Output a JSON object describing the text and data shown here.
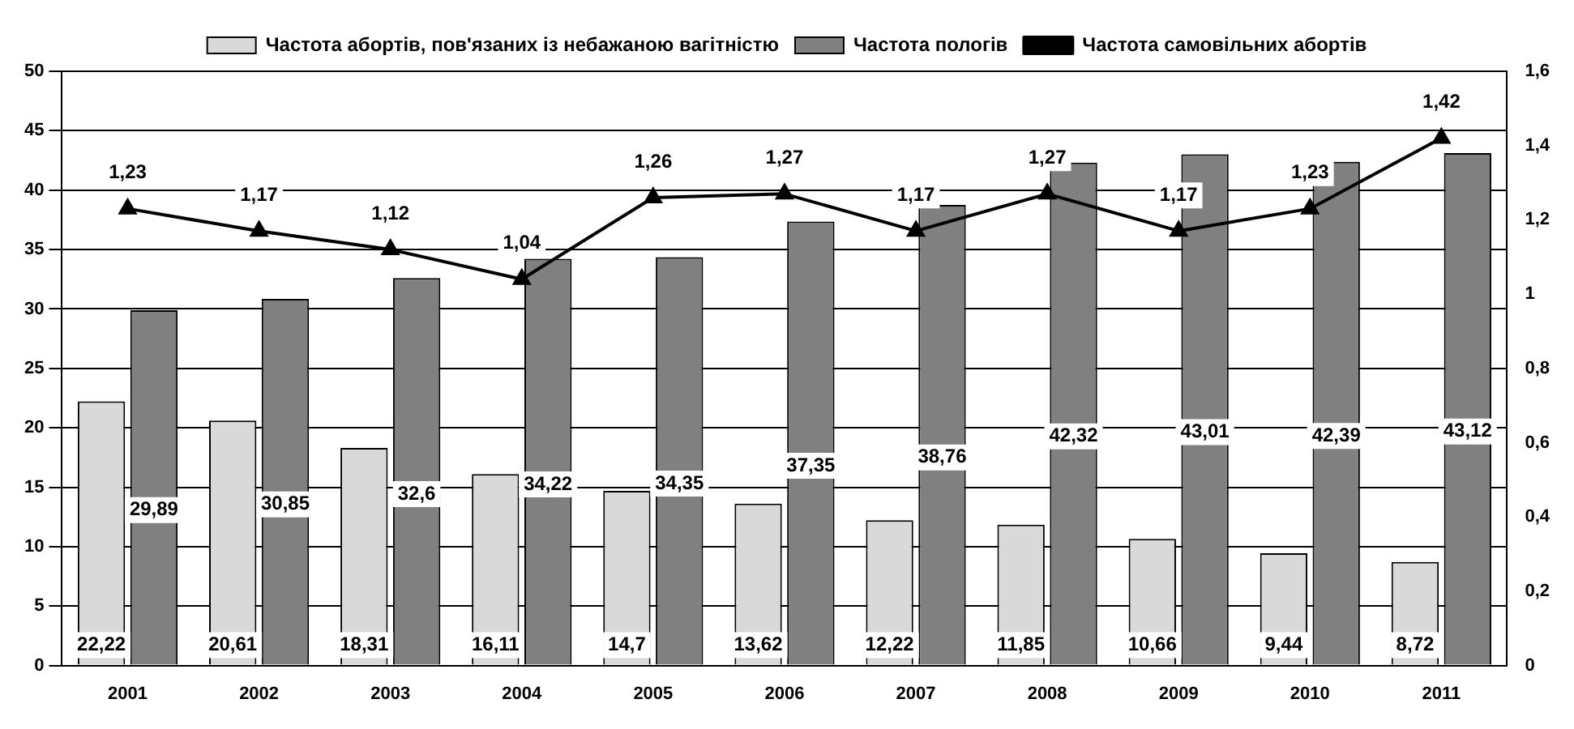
{
  "chart_data": {
    "type": "bar",
    "categories": [
      "2001",
      "2002",
      "2003",
      "2004",
      "2005",
      "2006",
      "2007",
      "2008",
      "2009",
      "2010",
      "2011"
    ],
    "series": [
      {
        "name": "Частота абортів, пов'язаних із небажаною вагітністю",
        "color": "#d9d9d9",
        "values": [
          22.22,
          20.61,
          18.31,
          16.11,
          14.7,
          13.62,
          12.22,
          11.85,
          10.66,
          9.44,
          8.72
        ],
        "value_labels": [
          "22,22",
          "20,61",
          "18,31",
          "16,11",
          "14,7",
          "13,62",
          "12,22",
          "11,85",
          "10,66",
          "9,44",
          "8,72"
        ]
      },
      {
        "name": "Частота пологів",
        "color": "#808080",
        "values": [
          29.89,
          30.85,
          32.6,
          34.22,
          34.35,
          37.35,
          38.76,
          42.32,
          43.01,
          42.39,
          43.12
        ],
        "value_labels": [
          "29,89",
          "30,85",
          "32,6",
          "34,22",
          "34,35",
          "37,35",
          "38,76",
          "42,32",
          "43,01",
          "42,39",
          "43,12"
        ]
      },
      {
        "name": "Частота самовільних абортів",
        "type": "line",
        "axis": "y2",
        "color": "#000000",
        "marker": "triangle",
        "values": [
          1.23,
          1.17,
          1.12,
          1.04,
          1.26,
          1.27,
          1.17,
          1.27,
          1.17,
          1.23,
          1.42
        ],
        "value_labels": [
          "1,23",
          "1,17",
          "1,12",
          "1,04",
          "1,26",
          "1,27",
          "1,17",
          "1,27",
          "1,17",
          "1,23",
          "1,42"
        ]
      }
    ],
    "ylim": [
      0,
      50
    ],
    "yticks": [
      0,
      5,
      10,
      15,
      20,
      25,
      30,
      35,
      40,
      45,
      50
    ],
    "y2lim": [
      0,
      1.6
    ],
    "y2ticks": [
      0,
      {
        "value": 0.2,
        "label": "0,2"
      },
      {
        "value": 0.4,
        "label": "0,4"
      },
      {
        "value": 0.6,
        "label": "0,6"
      },
      {
        "value": 0.8,
        "label": "0,8"
      },
      1,
      {
        "value": 1.2,
        "label": "1,2"
      },
      {
        "value": 1.4,
        "label": "1,4"
      },
      {
        "value": 1.6,
        "label": "1,6"
      }
    ],
    "grid": "y",
    "legend": "top"
  }
}
